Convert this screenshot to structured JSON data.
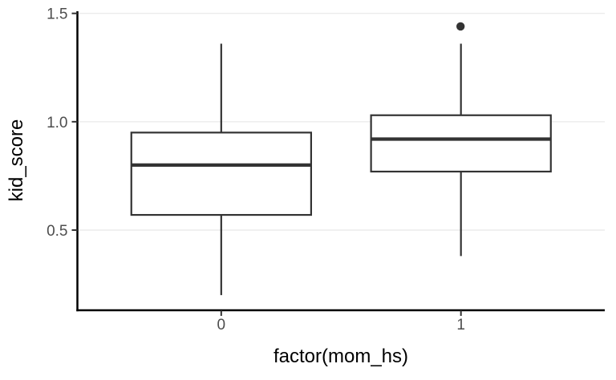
{
  "chart_data": {
    "type": "boxplot",
    "title": "",
    "xlabel": "factor(mom_hs)",
    "ylabel": "kid_score",
    "categories": [
      "0",
      "1"
    ],
    "y_tick_labels": [
      "0.5",
      "1.0",
      "1.5"
    ],
    "y_tick_values": [
      0.5,
      1.0,
      1.5
    ],
    "ylim": [
      0.13,
      1.51
    ],
    "grid": "major-y-horizontal",
    "legend": "none",
    "series": [
      {
        "category": "0",
        "whisker_low": 0.2,
        "q1": 0.57,
        "median": 0.8,
        "q3": 0.95,
        "whisker_high": 1.36,
        "outliers": []
      },
      {
        "category": "1",
        "whisker_low": 0.38,
        "q1": 0.77,
        "median": 0.92,
        "q3": 1.03,
        "whisker_high": 1.36,
        "outliers": [
          1.44
        ]
      }
    ],
    "colors": {
      "background": "#ffffff",
      "panel_background": "#ffffff",
      "gridline": "#ebebeb",
      "axis_line": "#000000",
      "box_stroke": "#333333",
      "box_fill": "#ffffff",
      "tick_mark": "#333333",
      "tick_label": "#4d4d4d",
      "axis_title": "#000000",
      "outlier": "#333333"
    }
  }
}
